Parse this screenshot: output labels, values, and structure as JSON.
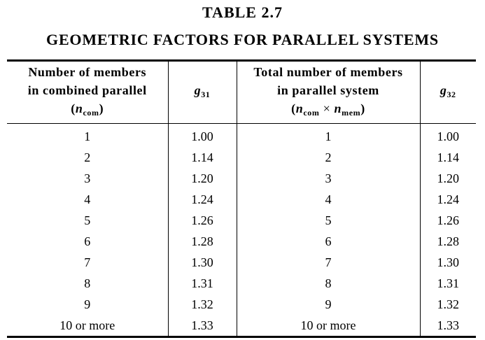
{
  "title": {
    "number": "TABLE   2.7",
    "text": "GEOMETRIC FACTORS FOR PARALLEL SYSTEMS"
  },
  "table": {
    "headers": {
      "col1_line1": "Number of members",
      "col1_line2": "in combined parallel",
      "col1_symbol": "n",
      "col1_symbol_sub": "com",
      "col2_symbol": "g",
      "col2_symbol_sub": "31",
      "col3_line1": "Total number of members",
      "col3_line2": "in parallel system",
      "col3_symbol_a": "n",
      "col3_symbol_a_sub": "com",
      "col3_times": "×",
      "col3_symbol_b": "n",
      "col3_symbol_b_sub": "mem",
      "col4_symbol": "g",
      "col4_symbol_sub": "32"
    },
    "rows": [
      {
        "n_com": "1",
        "g31": "1.00",
        "n_total": "1",
        "g32": "1.00"
      },
      {
        "n_com": "2",
        "g31": "1.14",
        "n_total": "2",
        "g32": "1.14"
      },
      {
        "n_com": "3",
        "g31": "1.20",
        "n_total": "3",
        "g32": "1.20"
      },
      {
        "n_com": "4",
        "g31": "1.24",
        "n_total": "4",
        "g32": "1.24"
      },
      {
        "n_com": "5",
        "g31": "1.26",
        "n_total": "5",
        "g32": "1.26"
      },
      {
        "n_com": "6",
        "g31": "1.28",
        "n_total": "6",
        "g32": "1.28"
      },
      {
        "n_com": "7",
        "g31": "1.30",
        "n_total": "7",
        "g32": "1.30"
      },
      {
        "n_com": "8",
        "g31": "1.31",
        "n_total": "8",
        "g32": "1.31"
      },
      {
        "n_com": "9",
        "g31": "1.32",
        "n_total": "9",
        "g32": "1.32"
      },
      {
        "n_com": "10 or more",
        "g31": "1.33",
        "n_total": "10 or more",
        "g32": "1.33"
      }
    ]
  }
}
